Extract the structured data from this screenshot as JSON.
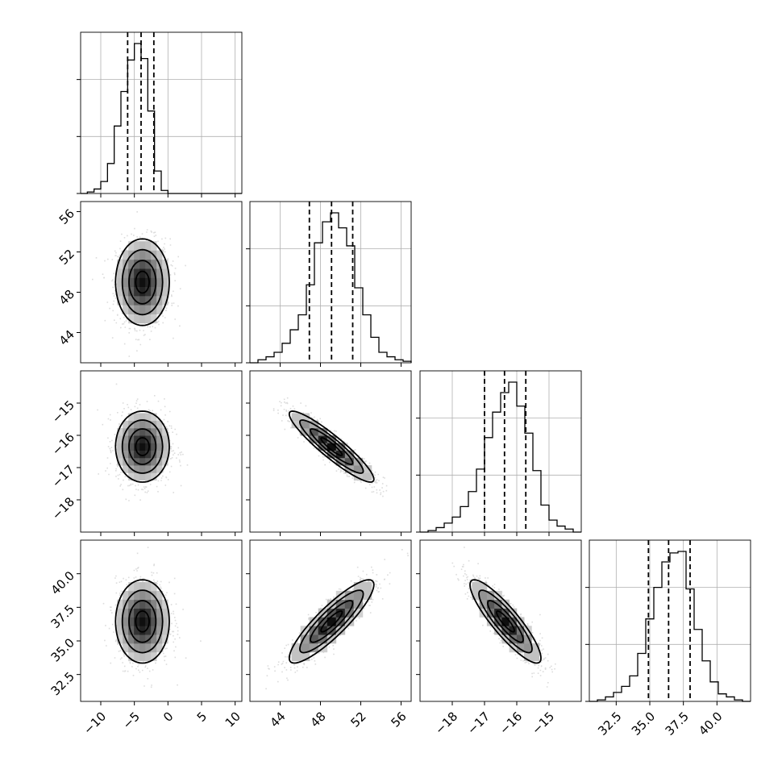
{
  "chart_data": {
    "type": "corner",
    "grid": true,
    "parameters": [
      {
        "index": 0,
        "range": [
          -13,
          11
        ],
        "ticks": [
          -10,
          -5,
          0,
          5,
          10
        ],
        "tick_labels": [
          "−10",
          "−5",
          "0",
          "5",
          "10"
        ],
        "quantiles": [
          -6.0,
          -4.0,
          -2.1
        ],
        "hist_edges": [
          -13,
          -12,
          -11,
          -10,
          -9,
          -8,
          -7,
          -6,
          -5,
          -4,
          -3,
          -2,
          -1,
          0,
          1,
          2,
          3,
          4,
          5,
          6,
          7,
          8,
          9,
          10,
          11
        ],
        "hist_density": [
          0,
          0.01,
          0.03,
          0.08,
          0.2,
          0.45,
          0.68,
          0.89,
          1.0,
          0.9,
          0.55,
          0.15,
          0.02,
          0,
          0,
          0,
          0,
          0,
          0,
          0,
          0,
          0,
          0,
          0
        ]
      },
      {
        "index": 1,
        "range": [
          41,
          57
        ],
        "ticks": [
          44,
          48,
          52,
          56
        ],
        "tick_labels": [
          "44",
          "48",
          "52",
          "56"
        ],
        "quantiles": [
          46.9,
          49.1,
          51.2
        ],
        "hist_edges": [
          41,
          41.8,
          42.6,
          43.4,
          44.2,
          45,
          45.8,
          46.6,
          47.4,
          48.2,
          49,
          49.8,
          50.6,
          51.4,
          52.2,
          53,
          53.8,
          54.6,
          55.4,
          56.2,
          57
        ],
        "hist_density": [
          0,
          0.02,
          0.04,
          0.07,
          0.13,
          0.22,
          0.32,
          0.52,
          0.8,
          0.94,
          1.0,
          0.9,
          0.78,
          0.5,
          0.32,
          0.17,
          0.07,
          0.04,
          0.02,
          0.01
        ]
      },
      {
        "index": 2,
        "range": [
          -19,
          -14
        ],
        "ticks": [
          -18,
          -17,
          -16,
          -15
        ],
        "tick_labels": [
          "−18",
          "−17",
          "−16",
          "−15"
        ],
        "quantiles": [
          -17.0,
          -16.38,
          -15.72
        ],
        "hist_edges": [
          -19,
          -18.75,
          -18.5,
          -18.25,
          -18,
          -17.75,
          -17.5,
          -17.25,
          -17,
          -16.75,
          -16.5,
          -16.25,
          -16,
          -15.75,
          -15.5,
          -15.25,
          -15,
          -14.75,
          -14.5,
          -14.25,
          -14
        ],
        "hist_density": [
          0,
          0.01,
          0.03,
          0.06,
          0.1,
          0.17,
          0.27,
          0.42,
          0.63,
          0.8,
          0.93,
          1.0,
          0.84,
          0.66,
          0.41,
          0.18,
          0.08,
          0.04,
          0.02,
          0
        ]
      },
      {
        "index": 3,
        "range": [
          30.5,
          42.5
        ],
        "ticks": [
          32.5,
          35.0,
          37.5,
          40.0
        ],
        "tick_labels": [
          "32.5",
          "35.0",
          "37.5",
          "40.0"
        ],
        "quantiles": [
          34.9,
          36.4,
          38.0
        ],
        "hist_edges": [
          30.5,
          31.1,
          31.7,
          32.3,
          32.9,
          33.5,
          34.1,
          34.7,
          35.3,
          35.9,
          36.5,
          37.1,
          37.7,
          38.3,
          38.9,
          39.5,
          40.1,
          40.7,
          41.3,
          41.9,
          42.5
        ],
        "hist_density": [
          0,
          0.01,
          0.03,
          0.06,
          0.1,
          0.17,
          0.32,
          0.55,
          0.76,
          0.93,
          0.99,
          1.0,
          0.75,
          0.48,
          0.27,
          0.13,
          0.05,
          0.03,
          0.01,
          0
        ]
      }
    ],
    "pairs": [
      {
        "x": 0,
        "y": 1,
        "mean": [
          -3.8,
          49.0
        ],
        "std": [
          2.0,
          2.15
        ],
        "corr": 0.0
      },
      {
        "x": 0,
        "y": 2,
        "mean": [
          -3.8,
          -16.35
        ],
        "std": [
          2.0,
          0.55
        ],
        "corr": 0.0
      },
      {
        "x": 0,
        "y": 3,
        "mean": [
          -3.8,
          36.45
        ],
        "std": [
          2.0,
          1.55
        ],
        "corr": 0.0
      },
      {
        "x": 1,
        "y": 2,
        "mean": [
          49.1,
          -16.35
        ],
        "std": [
          2.1,
          0.55
        ],
        "corr": -0.92
      },
      {
        "x": 1,
        "y": 3,
        "mean": [
          49.1,
          36.45
        ],
        "std": [
          2.1,
          1.55
        ],
        "corr": 0.88
      },
      {
        "x": 2,
        "y": 3,
        "mean": [
          -16.35,
          36.45
        ],
        "std": [
          0.55,
          1.55
        ],
        "corr": -0.88
      }
    ]
  }
}
